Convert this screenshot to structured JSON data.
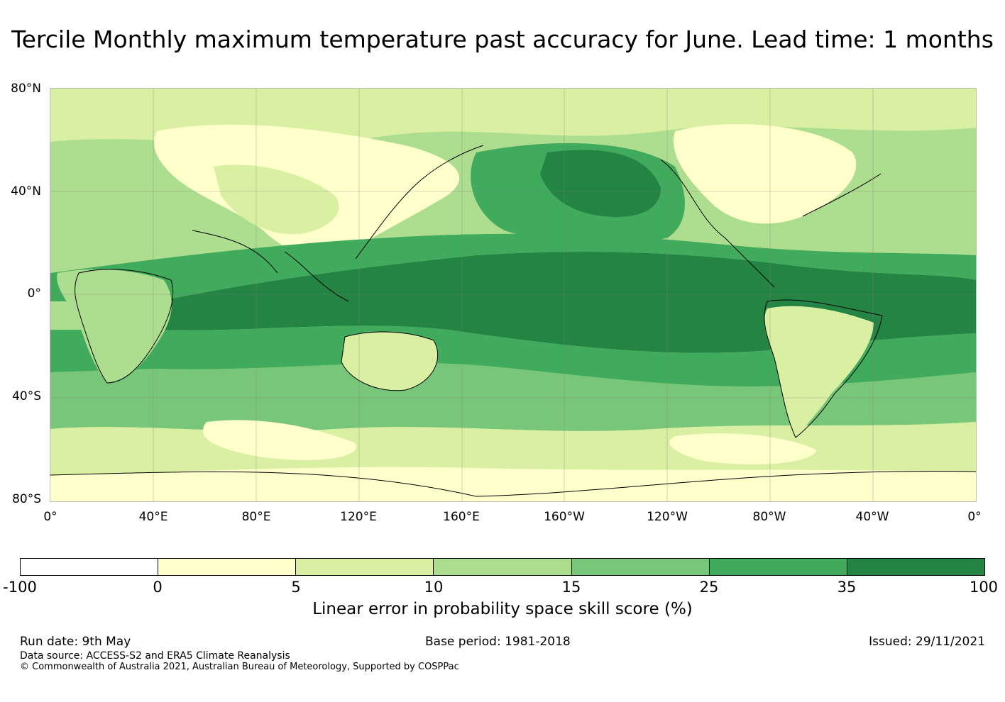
{
  "title": "Tercile Monthly maximum temperature past accuracy for June. Lead time: 1 months",
  "map": {
    "lat_labels": [
      "80°N",
      "40°N",
      "0°",
      "40°S",
      "80°S"
    ],
    "lon_labels": [
      "0°",
      "40°E",
      "80°E",
      "120°E",
      "160°E",
      "160°W",
      "120°W",
      "80°W",
      "40°W",
      "0°"
    ]
  },
  "colorbar": {
    "title": "Linear error in probability space skill score (%)",
    "ticks": [
      "-100",
      "0",
      "5",
      "10",
      "15",
      "25",
      "35",
      "100"
    ],
    "colors": [
      "#ffffff",
      "#ffffcc",
      "#d9f0a3",
      "#addd8e",
      "#78c679",
      "#41ab5d",
      "#238443"
    ]
  },
  "footer": {
    "run_date": "Run date: 9th May",
    "base_period": "Base period: 1981-2018",
    "issued": "Issued: 29/11/2021",
    "data_source": "Data source: ACCESS-S2 and ERA5 Climate Reanalysis",
    "copyright": "© Commonwealth of Australia 2021, Australian Bureau of Meteorology, Supported by COSPPac"
  }
}
